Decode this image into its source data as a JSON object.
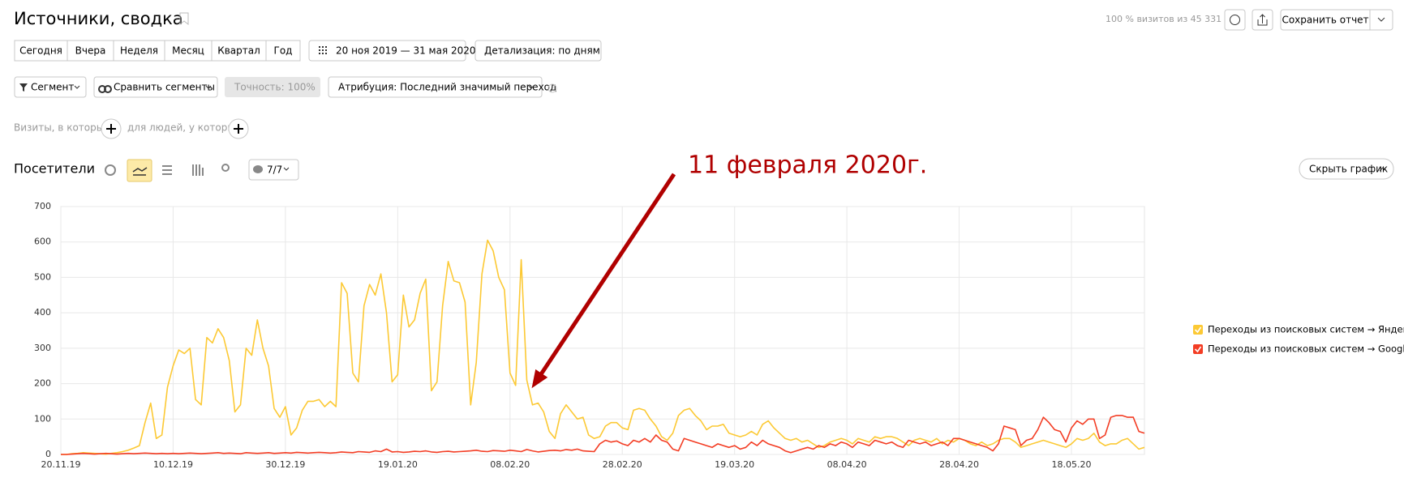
{
  "header": {
    "title": "Источники, сводка",
    "visits_share": "100 % визитов из 45 331",
    "save_button": "Сохранить отчет"
  },
  "toolbar": {
    "periods": [
      "Сегодня",
      "Вчера",
      "Неделя",
      "Месяц",
      "Квартал",
      "Год"
    ],
    "date_range": "20 ноя 2019 — 31 мая 2020",
    "detail": "Детализация: по дням",
    "segment": "Сегмент",
    "compare": "Сравнить сегменты",
    "accuracy": "Точность: 100%",
    "attribution": "Атрибуция: Последний значимый переход"
  },
  "filters": {
    "visits": "Визиты, в которых",
    "people": "для людей, у которых"
  },
  "chart_panel": {
    "title": "Посетители",
    "series_count": "7/7",
    "hide_button": "Скрыть график"
  },
  "chart_data": {
    "type": "line",
    "annotation": "11 февраля 2020г.",
    "categories": [
      "20.11.19",
      null,
      null,
      null,
      null,
      null,
      null,
      null,
      null,
      null,
      null,
      null,
      null,
      null,
      null,
      null,
      null,
      null,
      null,
      null,
      "10.12.19",
      null,
      null,
      null,
      null,
      null,
      null,
      null,
      null,
      null,
      null,
      null,
      null,
      null,
      null,
      null,
      null,
      null,
      null,
      null,
      "30.12.19",
      null,
      null,
      null,
      null,
      null,
      null,
      null,
      null,
      null,
      null,
      null,
      null,
      null,
      null,
      null,
      null,
      null,
      null,
      null,
      "19.01.20",
      null,
      null,
      null,
      null,
      null,
      null,
      null,
      null,
      null,
      null,
      null,
      null,
      null,
      null,
      null,
      null,
      null,
      null,
      null,
      "08.02.20",
      null,
      null,
      null,
      null,
      null,
      null,
      null,
      null,
      null,
      null,
      null,
      null,
      null,
      null,
      null,
      null,
      null,
      null,
      null,
      "28.02.20",
      null,
      null,
      null,
      null,
      null,
      null,
      null,
      null,
      null,
      null,
      null,
      null,
      null,
      null,
      null,
      null,
      null,
      null,
      null,
      "19.03.20",
      null,
      null,
      null,
      null,
      null,
      null,
      null,
      null,
      null,
      null,
      null,
      null,
      null,
      null,
      null,
      null,
      null,
      null,
      null,
      "08.04.20",
      null,
      null,
      null,
      null,
      null,
      null,
      null,
      null,
      null,
      null,
      null,
      null,
      null,
      null,
      null,
      null,
      null,
      null,
      null,
      "28.04.20",
      null,
      null,
      null,
      null,
      null,
      null,
      null,
      null,
      null,
      null,
      null,
      null,
      null,
      null,
      null,
      null,
      null,
      null,
      null,
      "18.05.20",
      null,
      null,
      null,
      null,
      null,
      null,
      null,
      null,
      null,
      null,
      null,
      null,
      null
    ],
    "series": [
      {
        "name": "Переходы из поисковых систем → Яндекс",
        "color": "#fcc934",
        "values": [
          0,
          0,
          2,
          3,
          5,
          4,
          3,
          2,
          1,
          3,
          5,
          8,
          12,
          18,
          25,
          90,
          145,
          45,
          55,
          190,
          250,
          295,
          285,
          300,
          155,
          140,
          330,
          315,
          355,
          330,
          265,
          120,
          140,
          300,
          280,
          380,
          300,
          250,
          130,
          105,
          135,
          55,
          75,
          125,
          150,
          150,
          155,
          135,
          150,
          135,
          485,
          455,
          230,
          205,
          420,
          480,
          450,
          510,
          400,
          205,
          225,
          450,
          360,
          380,
          455,
          495,
          180,
          205,
          420,
          545,
          490,
          485,
          430,
          140,
          260,
          510,
          605,
          575,
          500,
          465,
          230,
          195,
          550,
          210,
          140,
          145,
          120,
          65,
          45,
          115,
          140,
          120,
          100,
          105,
          55,
          45,
          50,
          80,
          90,
          90,
          75,
          70,
          125,
          130,
          125,
          100,
          80,
          50,
          40,
          60,
          110,
          125,
          130,
          110,
          95,
          70,
          80,
          80,
          85,
          60,
          55,
          50,
          55,
          65,
          55,
          85,
          95,
          75,
          60,
          45,
          40,
          45,
          35,
          40,
          30,
          20,
          25,
          35,
          40,
          45,
          40,
          30,
          45,
          40,
          35,
          50,
          45,
          50,
          50,
          45,
          35,
          25,
          40,
          45,
          40,
          35,
          45,
          30,
          40,
          35,
          45,
          40,
          30,
          25,
          35,
          25,
          30,
          40,
          45,
          45,
          35,
          20,
          25,
          30,
          35,
          40,
          35,
          30,
          25,
          20,
          30,
          45,
          40,
          45,
          60,
          35,
          25,
          30,
          30,
          40,
          45,
          30,
          15,
          20
        ]
      },
      {
        "name": "Переходы из поисковых систем → Google",
        "color": "#f33d24",
        "values": [
          0,
          0,
          1,
          2,
          3,
          2,
          1,
          2,
          3,
          2,
          1,
          2,
          3,
          2,
          3,
          4,
          3,
          2,
          3,
          2,
          3,
          2,
          3,
          4,
          3,
          2,
          3,
          4,
          5,
          3,
          4,
          3,
          2,
          5,
          4,
          3,
          4,
          5,
          3,
          4,
          5,
          4,
          6,
          5,
          4,
          5,
          6,
          5,
          4,
          5,
          7,
          6,
          5,
          8,
          7,
          6,
          10,
          8,
          15,
          7,
          8,
          6,
          7,
          9,
          8,
          10,
          7,
          6,
          8,
          9,
          7,
          8,
          9,
          10,
          12,
          9,
          8,
          11,
          10,
          9,
          12,
          10,
          8,
          14,
          10,
          7,
          9,
          11,
          12,
          10,
          14,
          12,
          15,
          10,
          9,
          8,
          30,
          40,
          35,
          38,
          30,
          25,
          40,
          35,
          45,
          35,
          55,
          40,
          35,
          15,
          10,
          45,
          40,
          35,
          30,
          25,
          20,
          30,
          25,
          20,
          25,
          15,
          20,
          35,
          25,
          40,
          30,
          25,
          20,
          10,
          5,
          10,
          15,
          20,
          15,
          25,
          20,
          30,
          25,
          35,
          30,
          20,
          35,
          30,
          25,
          40,
          35,
          30,
          35,
          25,
          20,
          40,
          35,
          30,
          35,
          25,
          30,
          35,
          25,
          45,
          45,
          40,
          35,
          30,
          25,
          20,
          10,
          30,
          80,
          75,
          70,
          25,
          40,
          45,
          70,
          105,
          90,
          70,
          65,
          35,
          75,
          95,
          85,
          100,
          100,
          45,
          55,
          105,
          110,
          110,
          105,
          105,
          65,
          60
        ]
      }
    ],
    "ylim": [
      0,
      700
    ],
    "yticks": [
      0,
      100,
      200,
      300,
      400,
      500,
      600,
      700
    ],
    "grid": true,
    "legend": "right",
    "annotation_index": 83
  }
}
